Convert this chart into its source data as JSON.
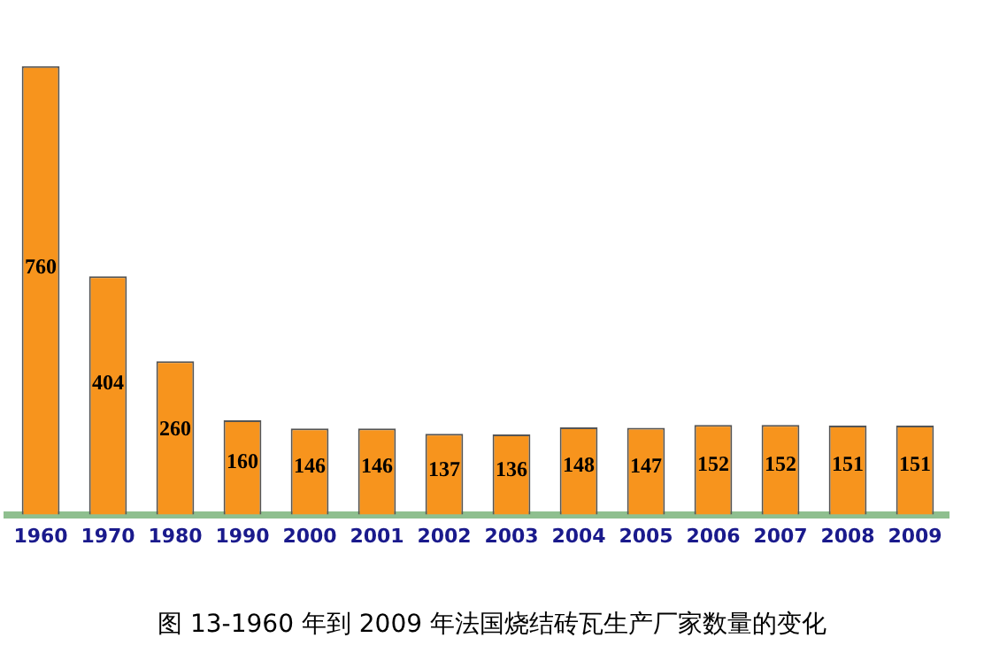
{
  "chart_data": {
    "type": "bar",
    "title": "图 13-1960 年到 2009 年法国烧结砖瓦生产厂家数量的变化",
    "categories": [
      "1960",
      "1970",
      "1980",
      "1990",
      "2000",
      "2001",
      "2002",
      "2003",
      "2004",
      "2005",
      "2006",
      "2007",
      "2008",
      "2009"
    ],
    "values": [
      760,
      404,
      260,
      160,
      146,
      146,
      137,
      136,
      148,
      147,
      152,
      152,
      151,
      151
    ],
    "color": "#f7941d",
    "data_labels": true,
    "grid": false,
    "legend": false
  }
}
